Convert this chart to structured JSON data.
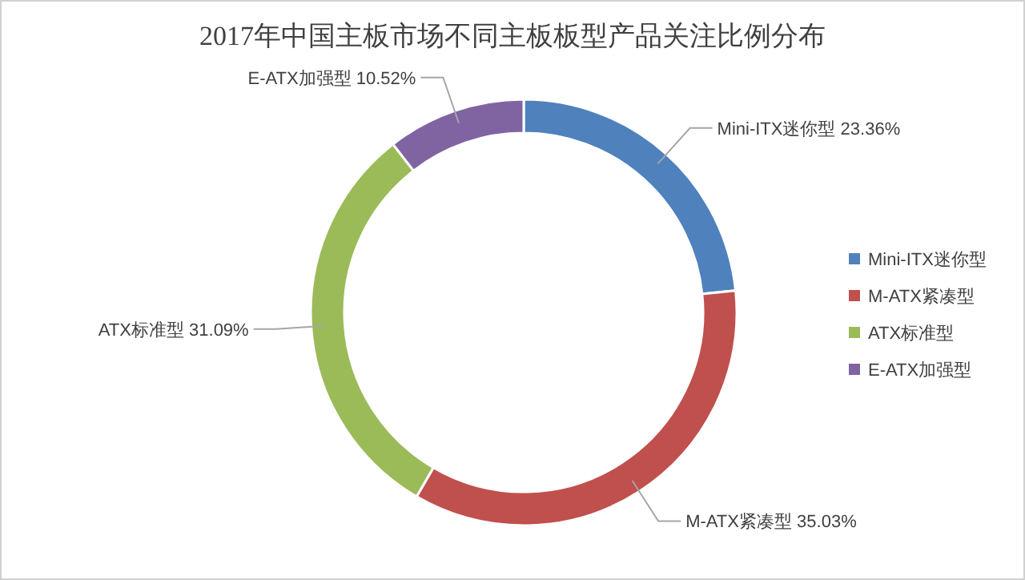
{
  "chart_data": {
    "type": "donut",
    "title": "2017年中国主板市场不同主板板型产品关注比例分布",
    "categories": [
      "Mini-ITX迷你型",
      "M-ATX紧凑型",
      "ATX标准型",
      "E-ATX加强型"
    ],
    "values": [
      23.36,
      35.03,
      31.09,
      10.52
    ],
    "value_labels": [
      "23.36%",
      "35.03%",
      "31.09%",
      "10.52%"
    ],
    "colors": [
      "#4f81bd",
      "#c0504d",
      "#9bbb59",
      "#8064a2"
    ],
    "legend": "right"
  }
}
